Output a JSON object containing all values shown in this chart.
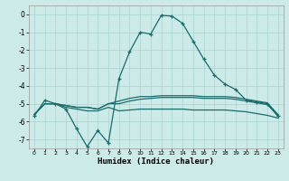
{
  "xlabel": "Humidex (Indice chaleur)",
  "bg_color": "#cceae7",
  "line_color": "#1a6b6b",
  "x": [
    0,
    1,
    2,
    3,
    4,
    5,
    6,
    7,
    8,
    9,
    10,
    11,
    12,
    13,
    14,
    15,
    16,
    17,
    18,
    19,
    20,
    21,
    22,
    23
  ],
  "line1": [
    -5.7,
    -4.8,
    -5.0,
    -5.3,
    -6.4,
    -7.4,
    -6.5,
    -7.2,
    -3.6,
    -2.1,
    -1.0,
    -1.1,
    -0.05,
    -0.1,
    -0.5,
    -1.5,
    -2.5,
    -3.4,
    -3.9,
    -4.2,
    -4.8,
    -4.9,
    -5.0,
    -5.7
  ],
  "line2": [
    -5.6,
    -5.0,
    -5.0,
    -5.1,
    -5.2,
    -5.2,
    -5.3,
    -5.0,
    -4.85,
    -4.7,
    -4.6,
    -4.6,
    -4.55,
    -4.55,
    -4.55,
    -4.55,
    -4.6,
    -4.6,
    -4.6,
    -4.65,
    -4.75,
    -4.85,
    -4.95,
    -5.6
  ],
  "line3": [
    -5.6,
    -5.0,
    -5.0,
    -5.1,
    -5.2,
    -5.2,
    -5.3,
    -5.0,
    -5.0,
    -4.85,
    -4.75,
    -4.7,
    -4.65,
    -4.65,
    -4.65,
    -4.65,
    -4.7,
    -4.7,
    -4.7,
    -4.75,
    -4.85,
    -4.95,
    -5.05,
    -5.65
  ],
  "line4": [
    -5.6,
    -5.0,
    -5.0,
    -5.2,
    -5.3,
    -5.4,
    -5.4,
    -5.2,
    -5.4,
    -5.35,
    -5.3,
    -5.3,
    -5.3,
    -5.3,
    -5.3,
    -5.35,
    -5.35,
    -5.35,
    -5.35,
    -5.4,
    -5.45,
    -5.55,
    -5.65,
    -5.8
  ],
  "ylim": [
    -7.5,
    0.5
  ],
  "xlim": [
    -0.5,
    23.5
  ],
  "yticks": [
    0,
    -1,
    -2,
    -3,
    -4,
    -5,
    -6,
    -7
  ],
  "xticks": [
    0,
    1,
    2,
    3,
    4,
    5,
    6,
    7,
    8,
    9,
    10,
    11,
    12,
    13,
    14,
    15,
    16,
    17,
    18,
    19,
    20,
    21,
    22,
    23
  ],
  "grid_color": "#aad4d0",
  "spine_color": "#999999"
}
